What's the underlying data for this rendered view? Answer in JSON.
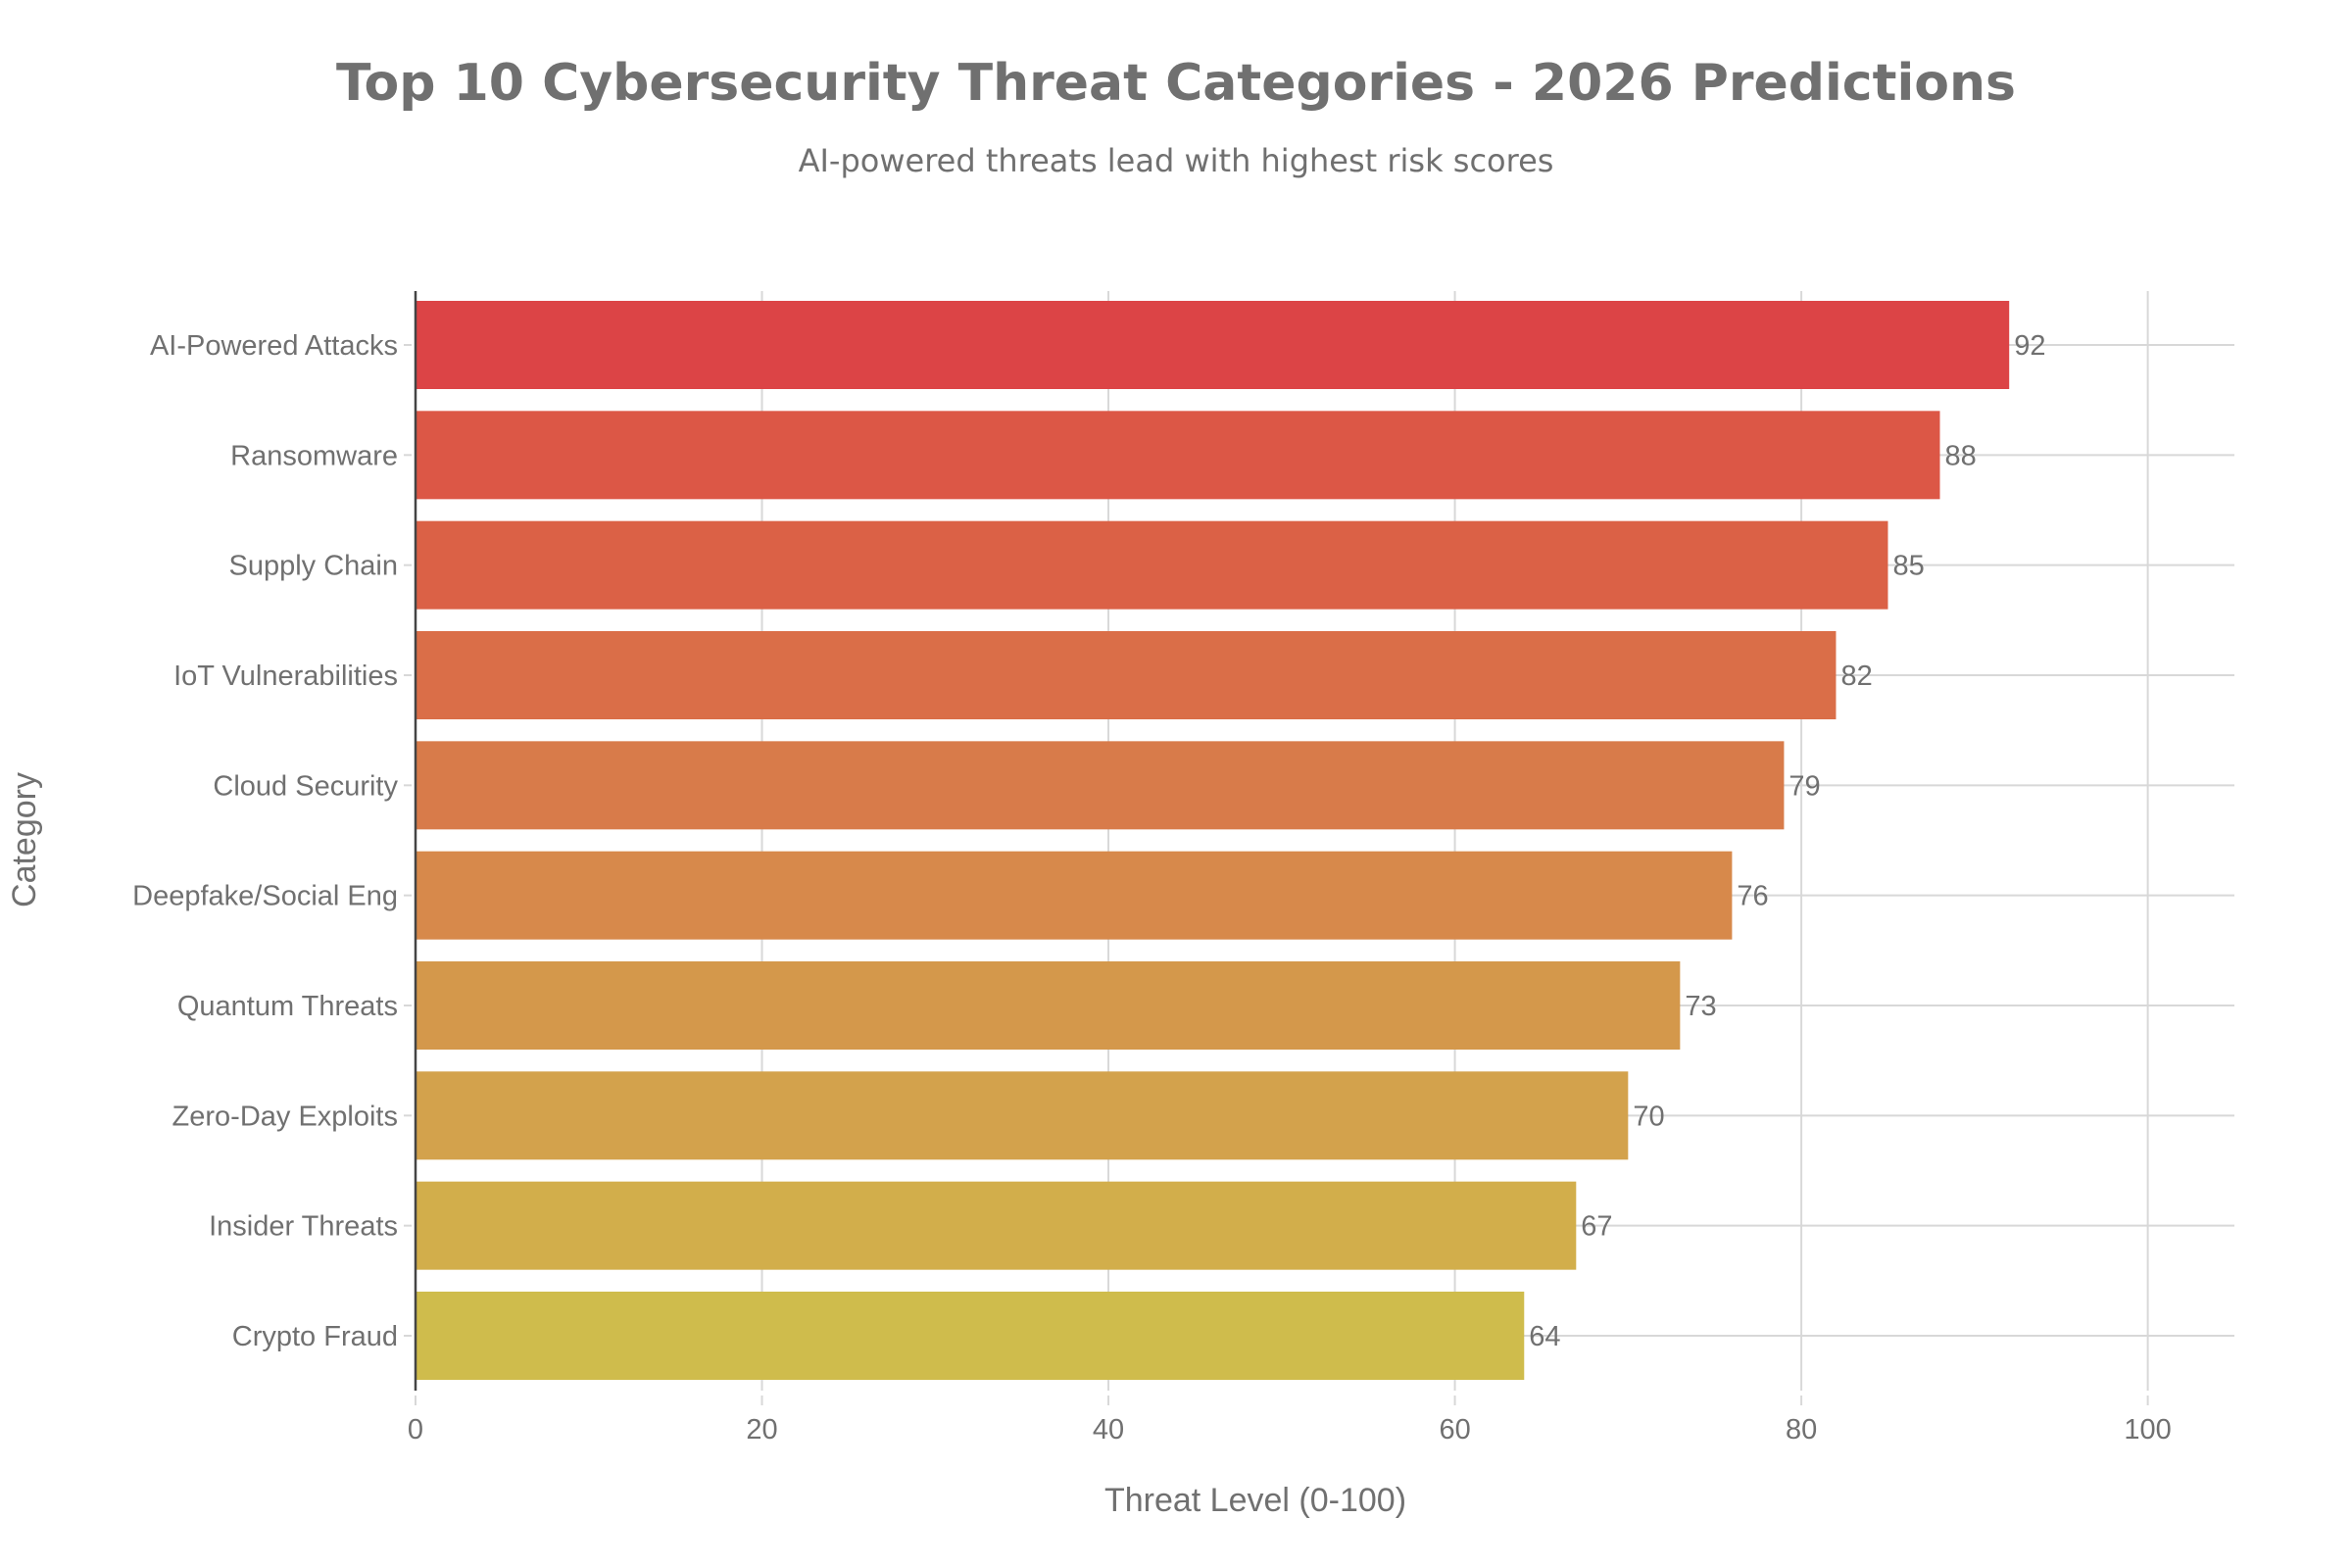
{
  "chart_data": {
    "type": "bar",
    "orientation": "horizontal",
    "title": "Top 10 Cybersecurity Threat Categories - 2026 Predictions",
    "subtitle": "AI-powered threats lead with highest risk scores",
    "xlabel": "Threat Level (0-100)",
    "ylabel": "Category",
    "xlim": [
      0,
      105
    ],
    "xticks": [
      0,
      20,
      40,
      60,
      80,
      100
    ],
    "grid": true,
    "categories": [
      "AI-Powered Attacks",
      "Ransomware",
      "Supply Chain",
      "IoT Vulnerabilities",
      "Cloud Security",
      "Deepfake/Social Eng",
      "Quantum Threats",
      "Zero-Day Exploits",
      "Insider Threats",
      "Crypto Fraud"
    ],
    "values": [
      92,
      88,
      85,
      82,
      79,
      76,
      73,
      70,
      67,
      64
    ],
    "colors": [
      "#DC4446",
      "#DC5746",
      "#DB6146",
      "#DA6E48",
      "#D87B4A",
      "#D7894B",
      "#D4984B",
      "#D3A24C",
      "#D2AE4B",
      "#CFBC4C"
    ],
    "data_labels": true
  }
}
